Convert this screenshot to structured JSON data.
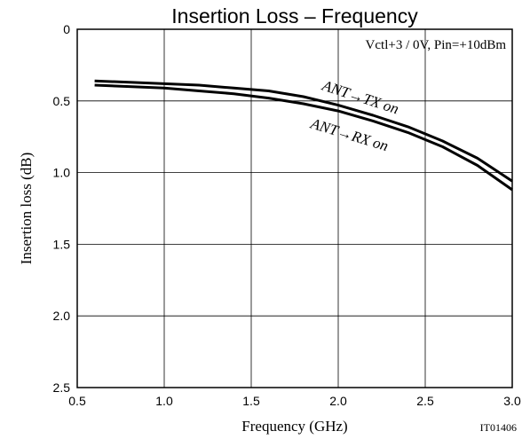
{
  "chart_data": {
    "type": "line",
    "title": "Insertion Loss  –  Frequency",
    "xlabel": "Frequency (GHz)",
    "ylabel": "Insertion loss (dB)",
    "xlim": [
      0.5,
      3.0
    ],
    "ylim": [
      0,
      2.5
    ],
    "y_inverted": true,
    "grid": true,
    "x_ticks": [
      "0.5",
      "1.0",
      "1.5",
      "2.0",
      "2.5",
      "3.0"
    ],
    "x_tick_values": [
      0.5,
      1.0,
      1.5,
      2.0,
      2.5,
      3.0
    ],
    "y_ticks": [
      "0",
      "0.5",
      "1.0",
      "1.5",
      "2.0",
      "2.5"
    ],
    "y_tick_values": [
      0,
      0.5,
      1.0,
      1.5,
      2.0,
      2.5
    ],
    "condition_note": "Vctl+3 / 0V, Pin=+10dBm",
    "figure_id": "IT01406",
    "series": [
      {
        "name": "ANT→TX on",
        "x": [
          0.6,
          0.8,
          1.0,
          1.2,
          1.4,
          1.6,
          1.8,
          2.0,
          2.2,
          2.4,
          2.6,
          2.8,
          3.0
        ],
        "values": [
          0.36,
          0.37,
          0.38,
          0.39,
          0.41,
          0.43,
          0.47,
          0.53,
          0.6,
          0.68,
          0.78,
          0.9,
          1.06
        ]
      },
      {
        "name": "ANT→RX on",
        "x": [
          0.6,
          0.8,
          1.0,
          1.2,
          1.4,
          1.6,
          1.8,
          2.0,
          2.2,
          2.4,
          2.6,
          2.8,
          3.0
        ],
        "values": [
          0.39,
          0.4,
          0.41,
          0.43,
          0.45,
          0.48,
          0.52,
          0.57,
          0.64,
          0.72,
          0.82,
          0.95,
          1.12
        ]
      }
    ],
    "line_color": "#000000"
  }
}
